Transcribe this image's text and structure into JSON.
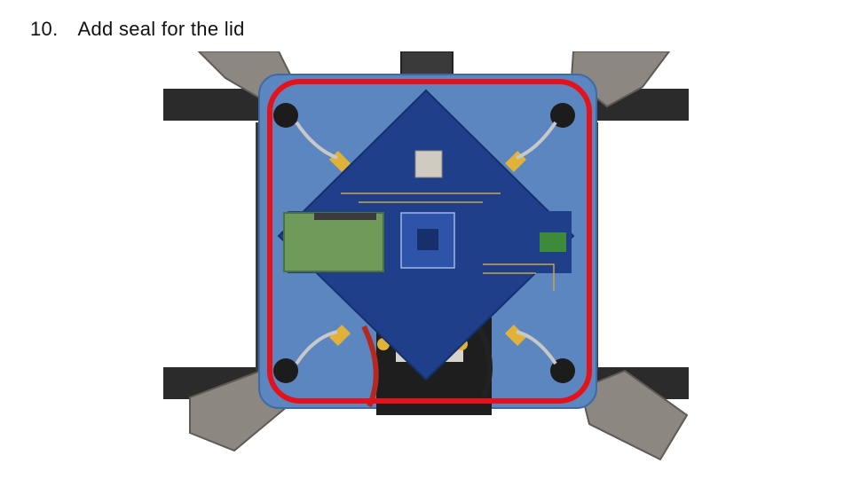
{
  "slide": {
    "step_number": "10.",
    "step_text": "Add seal for the lid"
  },
  "colors": {
    "plate": "#5b86bf",
    "pcb": "#1f3f8a",
    "seal": "#e3121b",
    "arm": "#2b2b2b",
    "motor_mount": "#8c8780",
    "raspberry_pi": "#6f9a5a"
  }
}
